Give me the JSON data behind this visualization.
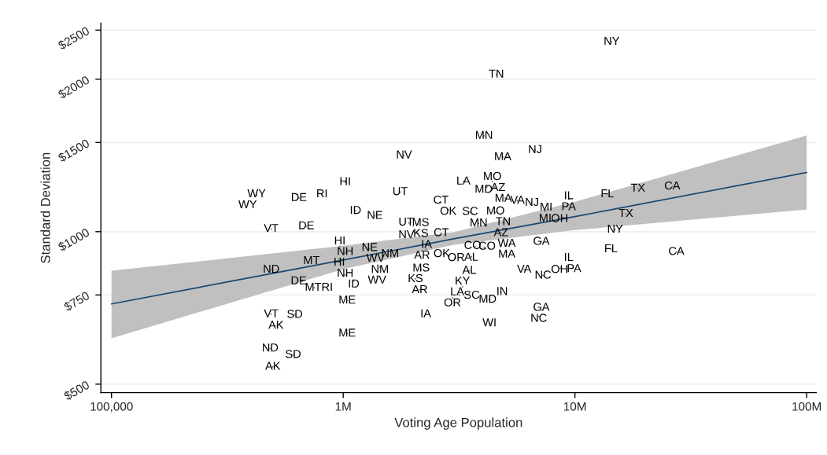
{
  "chart_data": {
    "type": "scatter",
    "xlabel": "Voting Age Population",
    "ylabel": "Standard Deviation",
    "log": "xy",
    "grid": "y",
    "legend": false,
    "xlim": [
      90000,
      110000000
    ],
    "ylim": [
      481,
      2580
    ],
    "xticks": [
      {
        "value": 100000,
        "label": "100,000"
      },
      {
        "value": 1000000,
        "label": "1M"
      },
      {
        "value": 10000000,
        "label": "10M"
      },
      {
        "value": 100000000,
        "label": "100M"
      }
    ],
    "yticks": [
      {
        "value": 500,
        "label": "$500"
      },
      {
        "value": 750,
        "label": "$750"
      },
      {
        "value": 1000,
        "label": "$1000"
      },
      {
        "value": 1500,
        "label": "$1500"
      },
      {
        "value": 2000,
        "label": "$2000"
      },
      {
        "value": 2500,
        "label": "$2500"
      }
    ],
    "series": [
      {
        "type": "line",
        "color": "#1a476f",
        "marker": "none",
        "x": [
          100000,
          1000000,
          3000000,
          10000000,
          100000000
        ],
        "values": [
          720,
          879,
          968,
          1071,
          1309
        ],
        "lower": [
          616,
          843,
          942,
          1007,
          1106
        ],
        "upper": [
          837,
          938,
          998,
          1146,
          1549
        ]
      },
      {
        "color": "#5a8a3a",
        "marker": "circle",
        "x": [
          14400000,
          4580000,
          4050000,
          1830000,
          4880000,
          6730000,
          1020000,
          3300000,
          4400000,
          4170000,
          4510000,
          423000,
          387000,
          644000,
          810000,
          1760000,
          5000000,
          5640000,
          6490000,
          9400000,
          9400000,
          13800000,
          18700000,
          26300000,
          2640000,
          2840000,
          1130000,
          1370000,
          3530000,
          4540000,
          7430000,
          7550000,
          8470000,
          16600000,
          1920000,
          2100000,
          3840000,
          4900000,
          4800000,
          489000,
          693000,
          1930000,
          2100000,
          2650000,
          14900000,
          967000,
          1020000,
          962000,
          1300000,
          1560000,
          2190000,
          2290000,
          2710000,
          3020000,
          3570000,
          3720000,
          4060000,
          5080000,
          5080000,
          7160000,
          14300000,
          27400000,
          489000,
          730000,
          1020000,
          1110000,
          1410000,
          1440000,
          1400000,
          2170000,
          2050000,
          2140000,
          3500000,
          6040000,
          7280000,
          8650000,
          9400000,
          9840000,
          665000,
          750000,
          815000,
          3270000,
          3500000,
          3180000,
          2960000,
          4260000,
          4780000,
          1040000,
          7160000,
          6980000,
          2270000,
          489000,
          618000,
          513000,
          4280000,
          1040000,
          484000,
          608000,
          497000
        ],
        "values": [
          2371,
          2042,
          1545,
          1414,
          1403,
          1449,
          1253,
          1256,
          1256,
          1225,
          1225,
          1180,
          1133,
          1165,
          1185,
          1197,
          1165,
          1151,
          1140,
          1159,
          1133,
          1185,
          1216,
          1228,
          1140,
          1106,
          1099,
          1074,
          1094,
          1091,
          1096,
          1080,
          1059,
          1084,
          1040,
          1035,
          1038,
          1042,
          995,
          1012,
          1025,
          984,
          993,
          993,
          1009,
          935,
          908,
          885,
          925,
          903,
          918,
          923,
          903,
          887,
          893,
          935,
          931,
          940,
          912,
          955,
          923,
          912,
          841,
          875,
          821,
          798,
          859,
          851,
          817,
          843,
          807,
          768,
          837,
          841,
          819,
          847,
          877,
          847,
          798,
          775,
          775,
          778,
          755,
          750,
          741,
          734,
          760,
          731,
          700,
          680,
          687,
          687,
          685,
          652,
          659,
          629,
          588,
          571,
          541
        ],
        "value_labels": [
          "NY",
          "TN",
          "MN",
          "NV",
          "MA",
          "NJ",
          "HI",
          "LA",
          "MO",
          "MD",
          "AZ",
          "WY",
          "WY",
          "DE",
          "RI",
          "UT",
          "MA",
          "VA",
          "NJ",
          "IL",
          "PA",
          "FL",
          "TX",
          "CA",
          "CT",
          "OK",
          "ID",
          "NE",
          "SC",
          "MO",
          "MI",
          "MI",
          "OH",
          "TX",
          "UT",
          "MS",
          "MN",
          "TN",
          "AZ",
          "VT",
          "DE",
          "NV",
          "KS",
          "CT",
          "NY",
          "HI",
          "NH",
          "HI",
          "NE",
          "NM",
          "AR",
          "IA",
          "OK",
          "OR",
          "AL",
          "CO",
          "CO",
          "WA",
          "MA",
          "GA",
          "FL",
          "CA",
          "ND",
          "MT",
          "NH",
          "ID",
          "WV",
          "NM",
          "WV",
          "MS",
          "KS",
          "AR",
          "AL",
          "VA",
          "NC",
          "OH",
          "IL",
          "PA",
          "DE",
          "MT",
          "RI",
          "KY",
          "SC",
          "LA",
          "OR",
          "MD",
          "IN",
          "ME",
          "GA",
          "NC",
          "IA",
          "VT",
          "SD",
          "AK",
          "WI",
          "ME",
          "ND",
          "SD",
          "AK"
        ]
      }
    ]
  }
}
